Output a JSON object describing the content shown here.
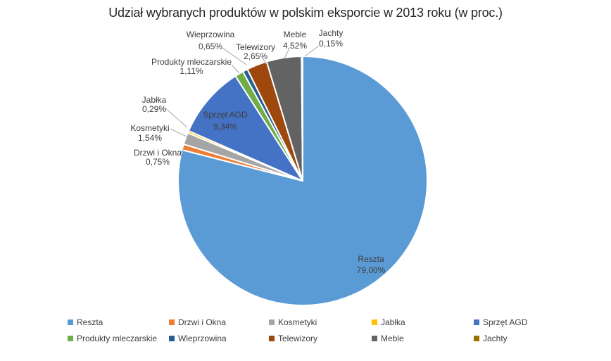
{
  "title": "Udział wybranych produktów w polskim eksporcie w 2013 roku (w proc.)",
  "chart_data": {
    "type": "pie",
    "title": "Udział wybranych produktów w polskim eksporcie w 2013 roku (w proc.)",
    "unit": "%",
    "value_format": "comma-decimal-percent",
    "direction": "clockwise",
    "start_angle_deg": 0,
    "legend_position": "bottom",
    "legend_rows": 2,
    "series": [
      {
        "name": "Reszta",
        "value": 79.0,
        "label": "79,00%",
        "color": "#5B9BD5",
        "label_placement": "inside"
      },
      {
        "name": "Drzwi i Okna",
        "value": 0.75,
        "label": "0,75%",
        "color": "#ED7D31",
        "label_placement": "outside"
      },
      {
        "name": "Kosmetyki",
        "value": 1.54,
        "label": "1,54%",
        "color": "#A5A5A5",
        "label_placement": "outside"
      },
      {
        "name": "Jabłka",
        "value": 0.29,
        "label": "0,29%",
        "color": "#FFC000",
        "label_placement": "outside"
      },
      {
        "name": "Sprzęt AGD",
        "value": 9.34,
        "label": "9,34%",
        "color": "#4472C4",
        "label_placement": "inside"
      },
      {
        "name": "Produkty mleczarskie",
        "value": 1.11,
        "label": "1,11%",
        "color": "#70AD47",
        "label_placement": "outside"
      },
      {
        "name": "Wieprzowina",
        "value": 0.65,
        "label": "0,65%",
        "color": "#255E91",
        "label_placement": "outside"
      },
      {
        "name": "Telewizory",
        "value": 2.65,
        "label": "2,65%",
        "color": "#9E480E",
        "label_placement": "outside"
      },
      {
        "name": "Meble",
        "value": 4.52,
        "label": "4,52%",
        "color": "#636363",
        "label_placement": "outside"
      },
      {
        "name": "Jachty",
        "value": 0.15,
        "label": "0,15%",
        "color": "#997300",
        "label_placement": "outside"
      }
    ]
  }
}
